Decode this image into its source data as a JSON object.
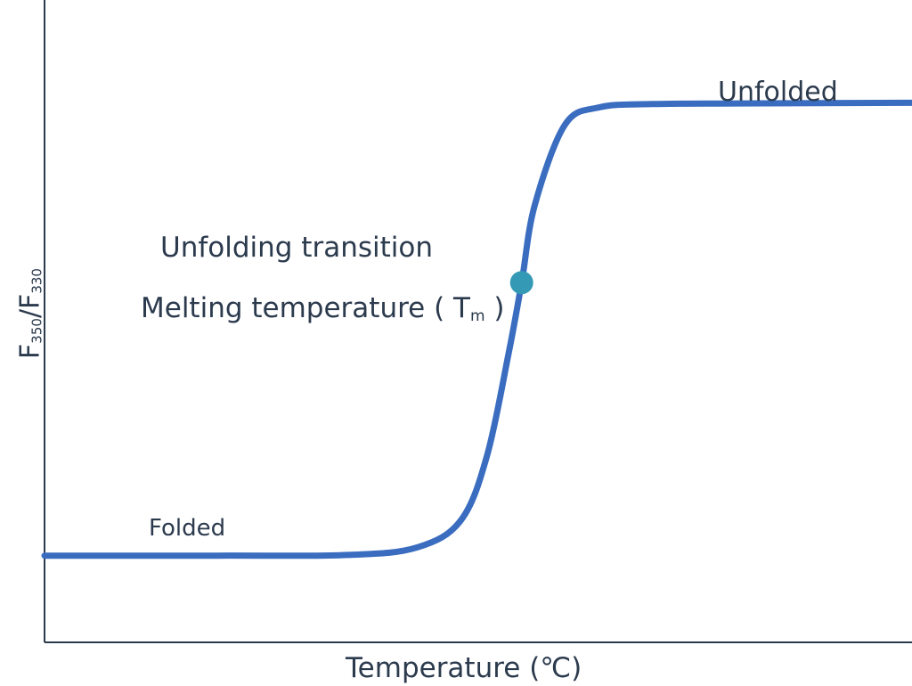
{
  "chart_data": {
    "type": "line",
    "xlabel": "Temperature (℃)",
    "ylabel": {
      "main": "F",
      "sub1": "350",
      "sep": "/F",
      "sub2": "330"
    },
    "annotations": {
      "unfolded": "Unfolded",
      "folded": "Folded",
      "transition": "Unfolding transition",
      "melting": {
        "text": "Melting temperature ( T",
        "sub": "m",
        "close": " )"
      }
    },
    "curve": {
      "shape": "sigmoid",
      "x": [
        0.0,
        0.2,
        0.35,
        0.43,
        0.48,
        0.51,
        0.535,
        0.55,
        0.565,
        0.6,
        0.64,
        0.7,
        0.8,
        1.0
      ],
      "y": [
        0.135,
        0.135,
        0.136,
        0.148,
        0.19,
        0.29,
        0.45,
        0.56,
        0.68,
        0.806,
        0.833,
        0.838,
        0.839,
        0.84
      ]
    },
    "point": {
      "x": 0.55,
      "y": 0.56
    },
    "grid": false,
    "colors": {
      "curve": "#3a6cbf",
      "point": "#3499b5",
      "axis": "#2b3a4d",
      "text": "#2b3a4d"
    }
  }
}
